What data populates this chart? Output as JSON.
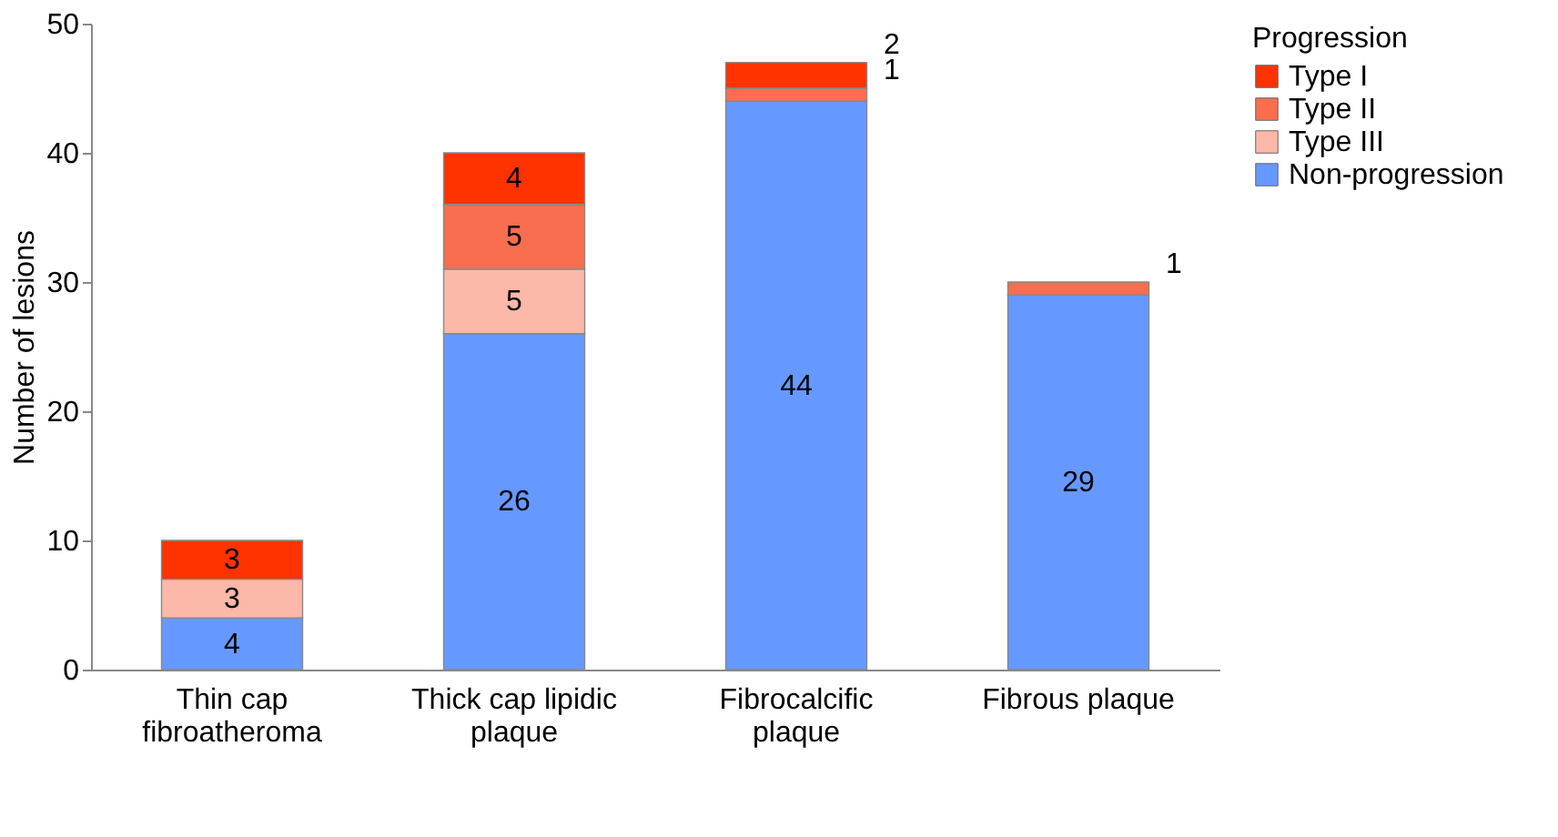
{
  "chart_data": {
    "type": "bar",
    "stacked": true,
    "ylabel": "Number of lesions",
    "legend_title": "Progression",
    "legend": "right",
    "categories": [
      "Thin cap\nfibroatheroma",
      "Thick cap lipidic\nplaque",
      "Fibrocalcific\nplaque",
      "Fibrous plaque"
    ],
    "series": [
      {
        "name": "Non-progression",
        "color": "#6699ff",
        "values": [
          4,
          26,
          44,
          29
        ],
        "value_labels": [
          "4",
          "26",
          "44",
          "29"
        ]
      },
      {
        "name": "Type III",
        "color": "#fcb8a8",
        "values": [
          3,
          5,
          0,
          0
        ],
        "value_labels": [
          "3",
          "5",
          null,
          null
        ]
      },
      {
        "name": "Type II",
        "color": "#f86e4e",
        "values": [
          0,
          5,
          1,
          1
        ],
        "value_labels": [
          null,
          "5",
          "1",
          "1"
        ]
      },
      {
        "name": "Type I",
        "color": "#ff3300",
        "values": [
          3,
          4,
          2,
          0
        ],
        "value_labels": [
          "3",
          "4",
          "2",
          null
        ]
      }
    ],
    "ylim": [
      0,
      50
    ],
    "yticks": [
      0,
      10,
      20,
      30,
      40,
      50
    ],
    "grid": false
  }
}
